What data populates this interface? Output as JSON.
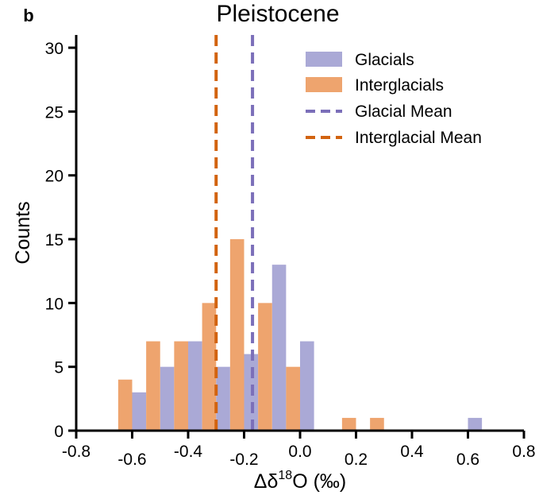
{
  "panel_letter": "b",
  "chart_data": {
    "type": "bar",
    "title": "Pleistocene",
    "xlabel_main": "Δδ",
    "xlabel_sup": "18",
    "xlabel_rest": "O (‰)",
    "ylabel": "Counts",
    "xlim": [
      -0.8,
      0.8
    ],
    "ylim": [
      0,
      31
    ],
    "xticks": [
      -0.8,
      -0.6,
      -0.4,
      -0.2,
      0.0,
      0.2,
      0.4,
      0.6,
      0.8
    ],
    "xtick_labels": [
      "-0.8",
      "-0.6",
      "-0.4",
      "-0.2",
      "0.0",
      "0.2",
      "0.4",
      "0.6",
      "0.8"
    ],
    "yticks": [
      0,
      5,
      10,
      15,
      20,
      25,
      30
    ],
    "ytick_labels": [
      "0",
      "5",
      "10",
      "15",
      "20",
      "25",
      "30"
    ],
    "bin_width": 0.1,
    "bin_centers": [
      -0.6,
      -0.5,
      -0.4,
      -0.3,
      -0.2,
      -0.1,
      0.0,
      0.1,
      0.2,
      0.3,
      0.4,
      0.5,
      0.6
    ],
    "series": [
      {
        "name": "Glacials",
        "color": "#aaa9d6",
        "values": [
          3,
          5,
          7,
          5,
          6,
          13,
          7,
          0,
          0,
          0,
          0,
          0,
          1
        ]
      },
      {
        "name": "Interglacials",
        "color": "#eea46e",
        "values": [
          4,
          7,
          7,
          10,
          15,
          10,
          5,
          0,
          1,
          1,
          0,
          0,
          0
        ]
      }
    ],
    "mean_lines": [
      {
        "name": "Glacial Mean",
        "color": "#7b6fb9",
        "x": -0.17
      },
      {
        "name": "Interglacial Mean",
        "color": "#d2630f",
        "x": -0.3
      }
    ],
    "legend": {
      "placement": "top-right",
      "entries": [
        "Glacials",
        "Interglacials",
        "Glacial Mean",
        "Interglacial Mean"
      ]
    },
    "grid": false
  }
}
